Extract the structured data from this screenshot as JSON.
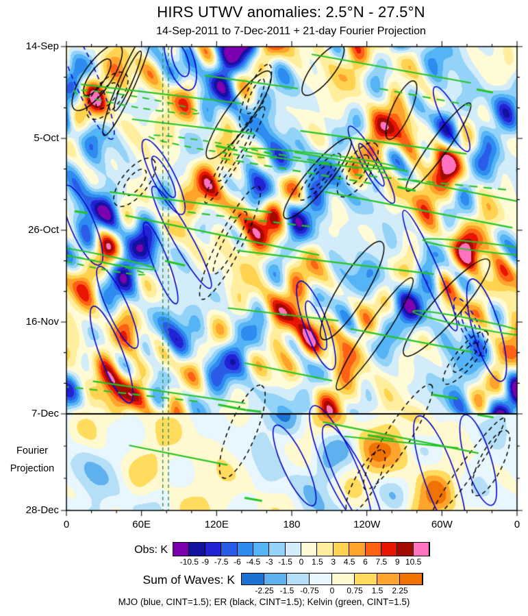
{
  "chart_data": {
    "type": "heatmap",
    "title": "HIRS UTWV anomalies: 2.5°N - 27.5°N",
    "subtitle": "14-Sep-2011 to 7-Dec-2011 + 21-day Fourier Projection",
    "x_axis": {
      "tick_labels": [
        "0",
        "60E",
        "120E",
        "180",
        "120W",
        "60W",
        "0"
      ],
      "tick_degrees": [
        0,
        60,
        120,
        180,
        240,
        300,
        360
      ],
      "minor_tick_deg": 20,
      "range_deg": [
        0,
        360
      ]
    },
    "y_axis": {
      "tick_labels": [
        "14-Sep",
        "5-Oct",
        "26-Oct",
        "16-Nov",
        "7-Dec",
        "28-Dec"
      ],
      "note": "time increases downward, 21-day major tick spacing",
      "obs_end_label": "7-Dec"
    },
    "fourier_projection_label": [
      "Fourier",
      "Projection"
    ],
    "obs_colorbar": {
      "label": "Obs: K",
      "levels": [
        -10.5,
        -9,
        -7.5,
        -6,
        -4.5,
        -3,
        -1.5,
        0,
        1.5,
        3,
        4.5,
        6,
        7.5,
        9,
        10.5
      ],
      "colors": [
        "#7C00B0",
        "#12129E",
        "#2222D6",
        "#2A5CE8",
        "#2E8CF0",
        "#55B4F5",
        "#93D3F7",
        "#D3ECFA",
        "#FFFBD7",
        "#FFEE9E",
        "#FFD34F",
        "#FFA32B",
        "#FF6214",
        "#E81600",
        "#A30A00",
        "#FF72C0"
      ]
    },
    "waves_colorbar": {
      "label": "Sum of Waves: K",
      "levels": [
        -2.25,
        -1.5,
        -0.75,
        0,
        0.75,
        1.5,
        2.25
      ],
      "colors": [
        "#1B72D2",
        "#5FB1EE",
        "#B5DFF7",
        "#E8F6FD",
        "#FFF9CF",
        "#FFDC5E",
        "#FFA52E",
        "#F07200"
      ]
    },
    "overlays": [
      {
        "name": "MJO",
        "color": "#0000CD",
        "cint": 1.5
      },
      {
        "name": "ER",
        "color": "#000000",
        "cint": 1.5
      },
      {
        "name": "Kelvin",
        "color": "#25C425",
        "cint": 1.5
      }
    ],
    "caption": "MJO (blue, CINT=1.5); ER (black, CINT=1.5); Kelvin (green, CINT=1.5)",
    "reference_lons": [
      77,
      81.5
    ],
    "pattern": {
      "components": [
        {
          "a": 3.5,
          "k": 2,
          "m": -1.2,
          "p": 0.1
        },
        {
          "a": 3.0,
          "k": 6,
          "m": 2.4,
          "p": 0.45
        },
        {
          "a": 2.6,
          "k": 5,
          "m": -5.5,
          "p": 0.8
        },
        {
          "a": 2.1,
          "k": 9,
          "m": 3.8,
          "p": 0.25
        },
        {
          "a": 1.8,
          "k": 12,
          "m": -8.5,
          "p": 0.6
        },
        {
          "a": 1.6,
          "k": 4,
          "m": 4.6,
          "p": 0.33
        },
        {
          "a": 1.3,
          "k": 15,
          "m": -3.2,
          "p": 0.7
        }
      ]
    }
  }
}
